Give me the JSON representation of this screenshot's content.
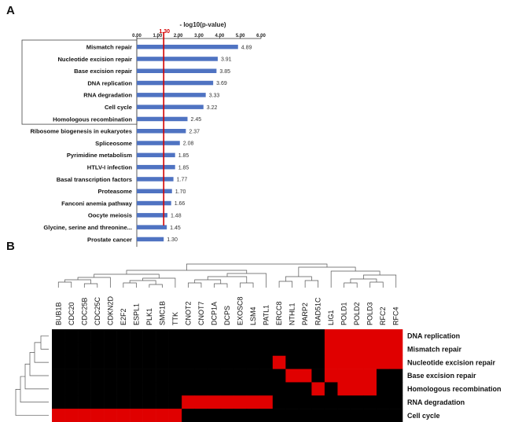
{
  "chart_data": [
    {
      "panel": "A",
      "type": "bar",
      "orientation": "horizontal",
      "title": "- log10(p-value)",
      "xlim": [
        0,
        6
      ],
      "xticks": [
        "0.00",
        "1.00",
        "2.00",
        "3.00",
        "4.00",
        "5.00",
        "6.00"
      ],
      "threshold": {
        "value": 1.3,
        "label": "1.30",
        "color": "#d40000"
      },
      "bar_color": "#4f73c2",
      "categories": [
        "Mismatch repair",
        "Nucleotide excision repair",
        "Base excision repair",
        "DNA replication",
        "RNA degradation",
        "Cell cycle",
        "Homologous recombination",
        "Ribosome biogenesis in eukaryotes",
        "Spliceosome",
        "Pyrimidine metabolism",
        "HTLV-I infection",
        "Basal transcription factors",
        "Proteasome",
        "Fanconi anemia pathway",
        "Oocyte meiosis",
        "Glycine, serine and threonine...",
        "Prostate cancer"
      ],
      "values": [
        4.89,
        3.91,
        3.85,
        3.69,
        3.33,
        3.22,
        2.45,
        2.37,
        2.08,
        1.85,
        1.85,
        1.77,
        1.7,
        1.66,
        1.48,
        1.45,
        1.3
      ],
      "value_labels": [
        "4.89",
        "3.91",
        "3.85",
        "3.69",
        "3.33",
        "3.22",
        "2.45",
        "2.37",
        "2.08",
        "1.85",
        "1.85",
        "1.77",
        "1.70",
        "1.66",
        "1.48",
        "1.45",
        "1.30"
      ],
      "highlighted_categories": [
        "Mismatch repair",
        "Nucleotide excision repair",
        "Base excision repair",
        "DNA replication",
        "RNA degradation",
        "Cell cycle",
        "Homologous recombination"
      ]
    },
    {
      "panel": "B",
      "type": "heatmap",
      "columns": [
        "BUB1B",
        "CDC20",
        "CDC25B",
        "CDC25C",
        "CDKN2D",
        "E2F2",
        "ESPL1",
        "PLK1",
        "SMC1B",
        "TTK",
        "CNOT2",
        "CNOT7",
        "DCP1A",
        "DCPS",
        "EXOSC8",
        "LSM4",
        "PATL1",
        "ERCC8",
        "NTHL1",
        "PARP2",
        "RAD51C",
        "LIG1",
        "POLD1",
        "POLD2",
        "POLD3",
        "RFC2",
        "RFC4"
      ],
      "rows": [
        "DNA replication",
        "Mismatch repair",
        "Nucleotide excision repair",
        "Base excision repair",
        "Homologous  recombination",
        "RNA degradation",
        "Cell cycle"
      ],
      "matrix": [
        [
          0,
          0,
          0,
          0,
          0,
          0,
          0,
          0,
          0,
          0,
          0,
          0,
          0,
          0,
          0,
          0,
          0,
          0,
          0,
          0,
          0,
          1,
          1,
          1,
          1,
          1,
          1
        ],
        [
          0,
          0,
          0,
          0,
          0,
          0,
          0,
          0,
          0,
          0,
          0,
          0,
          0,
          0,
          0,
          0,
          0,
          0,
          0,
          0,
          0,
          1,
          1,
          1,
          1,
          1,
          1
        ],
        [
          0,
          0,
          0,
          0,
          0,
          0,
          0,
          0,
          0,
          0,
          0,
          0,
          0,
          0,
          0,
          0,
          0,
          1,
          0,
          0,
          0,
          1,
          1,
          1,
          1,
          1,
          1
        ],
        [
          0,
          0,
          0,
          0,
          0,
          0,
          0,
          0,
          0,
          0,
          0,
          0,
          0,
          0,
          0,
          0,
          0,
          0,
          1,
          1,
          0,
          1,
          1,
          1,
          1,
          0,
          0
        ],
        [
          0,
          0,
          0,
          0,
          0,
          0,
          0,
          0,
          0,
          0,
          0,
          0,
          0,
          0,
          0,
          0,
          0,
          0,
          0,
          0,
          1,
          0,
          1,
          1,
          1,
          0,
          0
        ],
        [
          0,
          0,
          0,
          0,
          0,
          0,
          0,
          0,
          0,
          0,
          1,
          1,
          1,
          1,
          1,
          1,
          1,
          0,
          0,
          0,
          0,
          0,
          0,
          0,
          0,
          0,
          0
        ],
        [
          1,
          1,
          1,
          1,
          1,
          1,
          1,
          1,
          1,
          1,
          0,
          0,
          0,
          0,
          0,
          0,
          0,
          0,
          0,
          0,
          0,
          0,
          0,
          0,
          0,
          0,
          0
        ]
      ],
      "present_color": "#e00000",
      "absent_color": "#000000"
    }
  ],
  "panel_labels": {
    "a": "A",
    "b": "B"
  }
}
